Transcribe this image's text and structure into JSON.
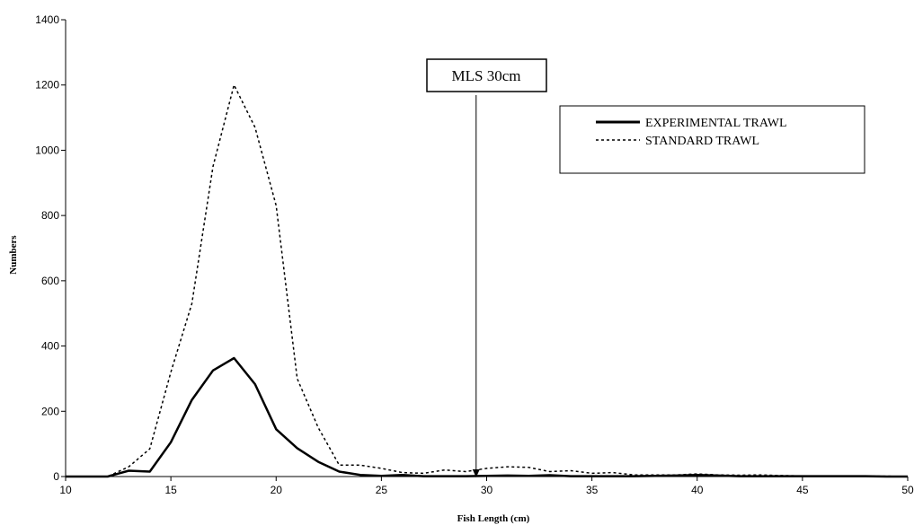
{
  "chart_data": {
    "type": "line",
    "title": "",
    "xlabel": "Fish Length (cm)",
    "ylabel": "Numbers",
    "xlim": [
      10,
      50
    ],
    "ylim": [
      0,
      1400
    ],
    "xticks": [
      10,
      15,
      20,
      25,
      30,
      35,
      40,
      45,
      50
    ],
    "yticks": [
      0,
      200,
      400,
      600,
      800,
      1000,
      1200,
      1400
    ],
    "grid": false,
    "legend_position": "top-right",
    "annotation": {
      "label": "MLS 30cm",
      "x": 29.5
    },
    "series": [
      {
        "name": "EXPERIMENTAL TRAWL",
        "style": "solid",
        "x": [
          10,
          11,
          12,
          13,
          14,
          15,
          16,
          17,
          18,
          19,
          20,
          21,
          22,
          23,
          24,
          25,
          26,
          27,
          28,
          29,
          30,
          31,
          32,
          33,
          34,
          35,
          36,
          37,
          38,
          39,
          40,
          41,
          42,
          43,
          44,
          45,
          46,
          47,
          48,
          49,
          50
        ],
        "values": [
          0,
          0,
          0,
          18,
          15,
          105,
          235,
          325,
          363,
          283,
          145,
          87,
          45,
          15,
          5,
          2,
          5,
          1,
          1,
          1,
          2,
          3,
          2,
          4,
          1,
          1,
          1,
          1,
          2,
          3,
          5,
          3,
          1,
          1,
          1,
          1,
          1,
          1,
          1,
          0,
          0
        ]
      },
      {
        "name": "STANDARD TRAWL",
        "style": "dotted",
        "x": [
          10,
          11,
          12,
          13,
          14,
          15,
          16,
          17,
          18,
          19,
          20,
          21,
          22,
          23,
          24,
          25,
          26,
          27,
          28,
          29,
          30,
          31,
          32,
          33,
          34,
          35,
          36,
          37,
          38,
          39,
          40,
          41,
          42,
          43,
          44,
          45,
          46,
          47,
          48,
          49,
          50
        ],
        "values": [
          0,
          0,
          0,
          30,
          85,
          320,
          530,
          950,
          1200,
          1070,
          830,
          300,
          150,
          35,
          35,
          25,
          12,
          10,
          20,
          15,
          25,
          30,
          28,
          15,
          18,
          10,
          12,
          5,
          5,
          5,
          8,
          5,
          4,
          5,
          3,
          2,
          2,
          1,
          1,
          1,
          0
        ]
      }
    ]
  }
}
